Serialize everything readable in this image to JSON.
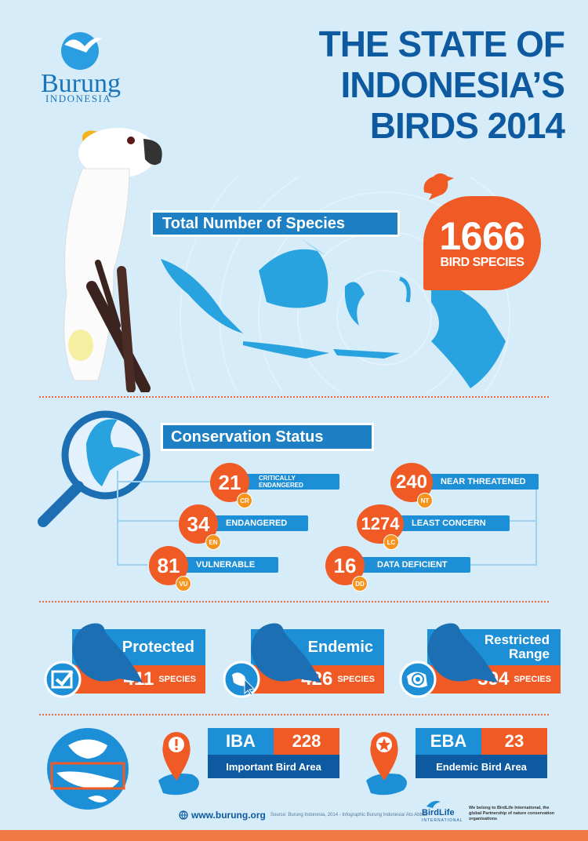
{
  "header": {
    "title_line1": "THE STATE OF",
    "title_line2": "INDONESIA’S",
    "title_line3": "BIRDS 2014",
    "logo_name": "Burung",
    "logo_sub": "INDONESIA"
  },
  "species": {
    "banner": "Total Number of Species",
    "count": "1666",
    "label": "BIRD SPECIES"
  },
  "conservation": {
    "banner": "Conservation Status",
    "statuses": [
      {
        "value": "21",
        "code": "CR",
        "label": "CRITICALLY ENDANGERED"
      },
      {
        "value": "34",
        "code": "EN",
        "label": "ENDANGERED"
      },
      {
        "value": "81",
        "code": "VU",
        "label": "VULNERABLE"
      },
      {
        "value": "240",
        "code": "NT",
        "label": "NEAR THREATENED"
      },
      {
        "value": "1274",
        "code": "LC",
        "label": "LEAST CONCERN"
      },
      {
        "value": "16",
        "code": "DD",
        "label": "DATA DEFICIENT"
      }
    ]
  },
  "categories": [
    {
      "title": "Protected",
      "value": "411",
      "unit": "SPECIES"
    },
    {
      "title": "Endemic",
      "value": "426",
      "unit": "SPECIES"
    },
    {
      "title_line1": "Restricted",
      "title_line2": "Range",
      "value": "394",
      "unit": "SPECIES"
    }
  ],
  "areas": [
    {
      "code": "IBA",
      "value": "228",
      "label": "Important Bird Area"
    },
    {
      "code": "EBA",
      "value": "23",
      "label": "Endemic Bird Area"
    }
  ],
  "footer": {
    "website": "www.burung.org",
    "source": "Source: Burung Indonesia, 2014 - Infographic Burung Indonesia/ Ato Abbas",
    "birdlife": "BirdLife",
    "birdlife_sub": "INTERNATIONAL",
    "birdlife_note": "We belong to BirdLife International, the global Partnership of nature conservation organisations"
  },
  "colors": {
    "background": "#d6ecf8",
    "primary_blue": "#1d8fd6",
    "dark_blue": "#0e5aa0",
    "orange": "#ef5a25"
  }
}
